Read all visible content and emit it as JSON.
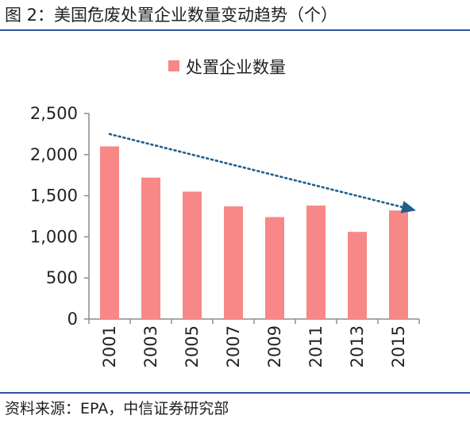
{
  "header": {
    "title": "图 2：美国危废处置企业数量变动趋势（个）"
  },
  "footer": {
    "source": "资料来源：EPA，中信证券研究部"
  },
  "chart_data": {
    "type": "bar",
    "title": "",
    "xlabel": "",
    "ylabel": "",
    "categories": [
      "2001",
      "2003",
      "2005",
      "2007",
      "2009",
      "2011",
      "2013",
      "2015"
    ],
    "series": [
      {
        "name": "处置企业数量",
        "values": [
          2100,
          1720,
          1550,
          1370,
          1240,
          1380,
          1060,
          1320
        ]
      }
    ],
    "ylim": [
      0,
      2500
    ],
    "yticks": [
      0,
      500,
      1000,
      1500,
      2000,
      2500
    ],
    "ytick_labels": [
      "0",
      "500",
      "1,000",
      "1,500",
      "2,000",
      "2,500"
    ],
    "bar_color": "#f88787",
    "trend_line": {
      "from_value": 2250,
      "to_value": 1320,
      "color": "#1f5f8b",
      "style": "dotted-arrow"
    },
    "legend_position": "top-center",
    "grid": false
  }
}
